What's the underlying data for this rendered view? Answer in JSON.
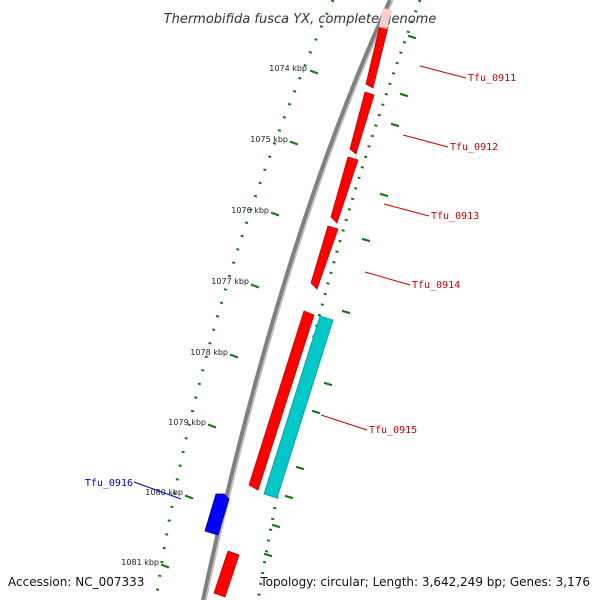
{
  "title": "Thermobifida fusca YX, complete genome",
  "footer": {
    "accession": "Accession: NC_007333",
    "summary": "Topology: circular; Length: 3,642,249 bp; Genes: 3,176"
  },
  "colors": {
    "backbone": "#808080",
    "tick": "#1a7a1a",
    "forward_gene": "#ff0000",
    "reverse_gene": "#0000ff",
    "cds_feature": "#00c8c8",
    "forward_label": "#cc0000",
    "reverse_label": "#0000cc"
  },
  "ticks": [
    {
      "label": "1074 kbp",
      "kbp": 1074
    },
    {
      "label": "1075 kbp",
      "kbp": 1075
    },
    {
      "label": "1076 kbp",
      "kbp": 1076
    },
    {
      "label": "1077 kbp",
      "kbp": 1077
    },
    {
      "label": "1078 kbp",
      "kbp": 1078
    },
    {
      "label": "1079 kbp",
      "kbp": 1079
    },
    {
      "label": "1080 kbp",
      "kbp": 1080
    },
    {
      "label": "1081 kbp",
      "kbp": 1081
    }
  ],
  "genes": [
    {
      "name": "Tfu_0911",
      "strand": "forward"
    },
    {
      "name": "Tfu_0912",
      "strand": "forward"
    },
    {
      "name": "Tfu_0913",
      "strand": "forward"
    },
    {
      "name": "Tfu_0914",
      "strand": "forward"
    },
    {
      "name": "Tfu_0915",
      "strand": "forward"
    },
    {
      "name": "Tfu_0916",
      "strand": "reverse"
    }
  ]
}
